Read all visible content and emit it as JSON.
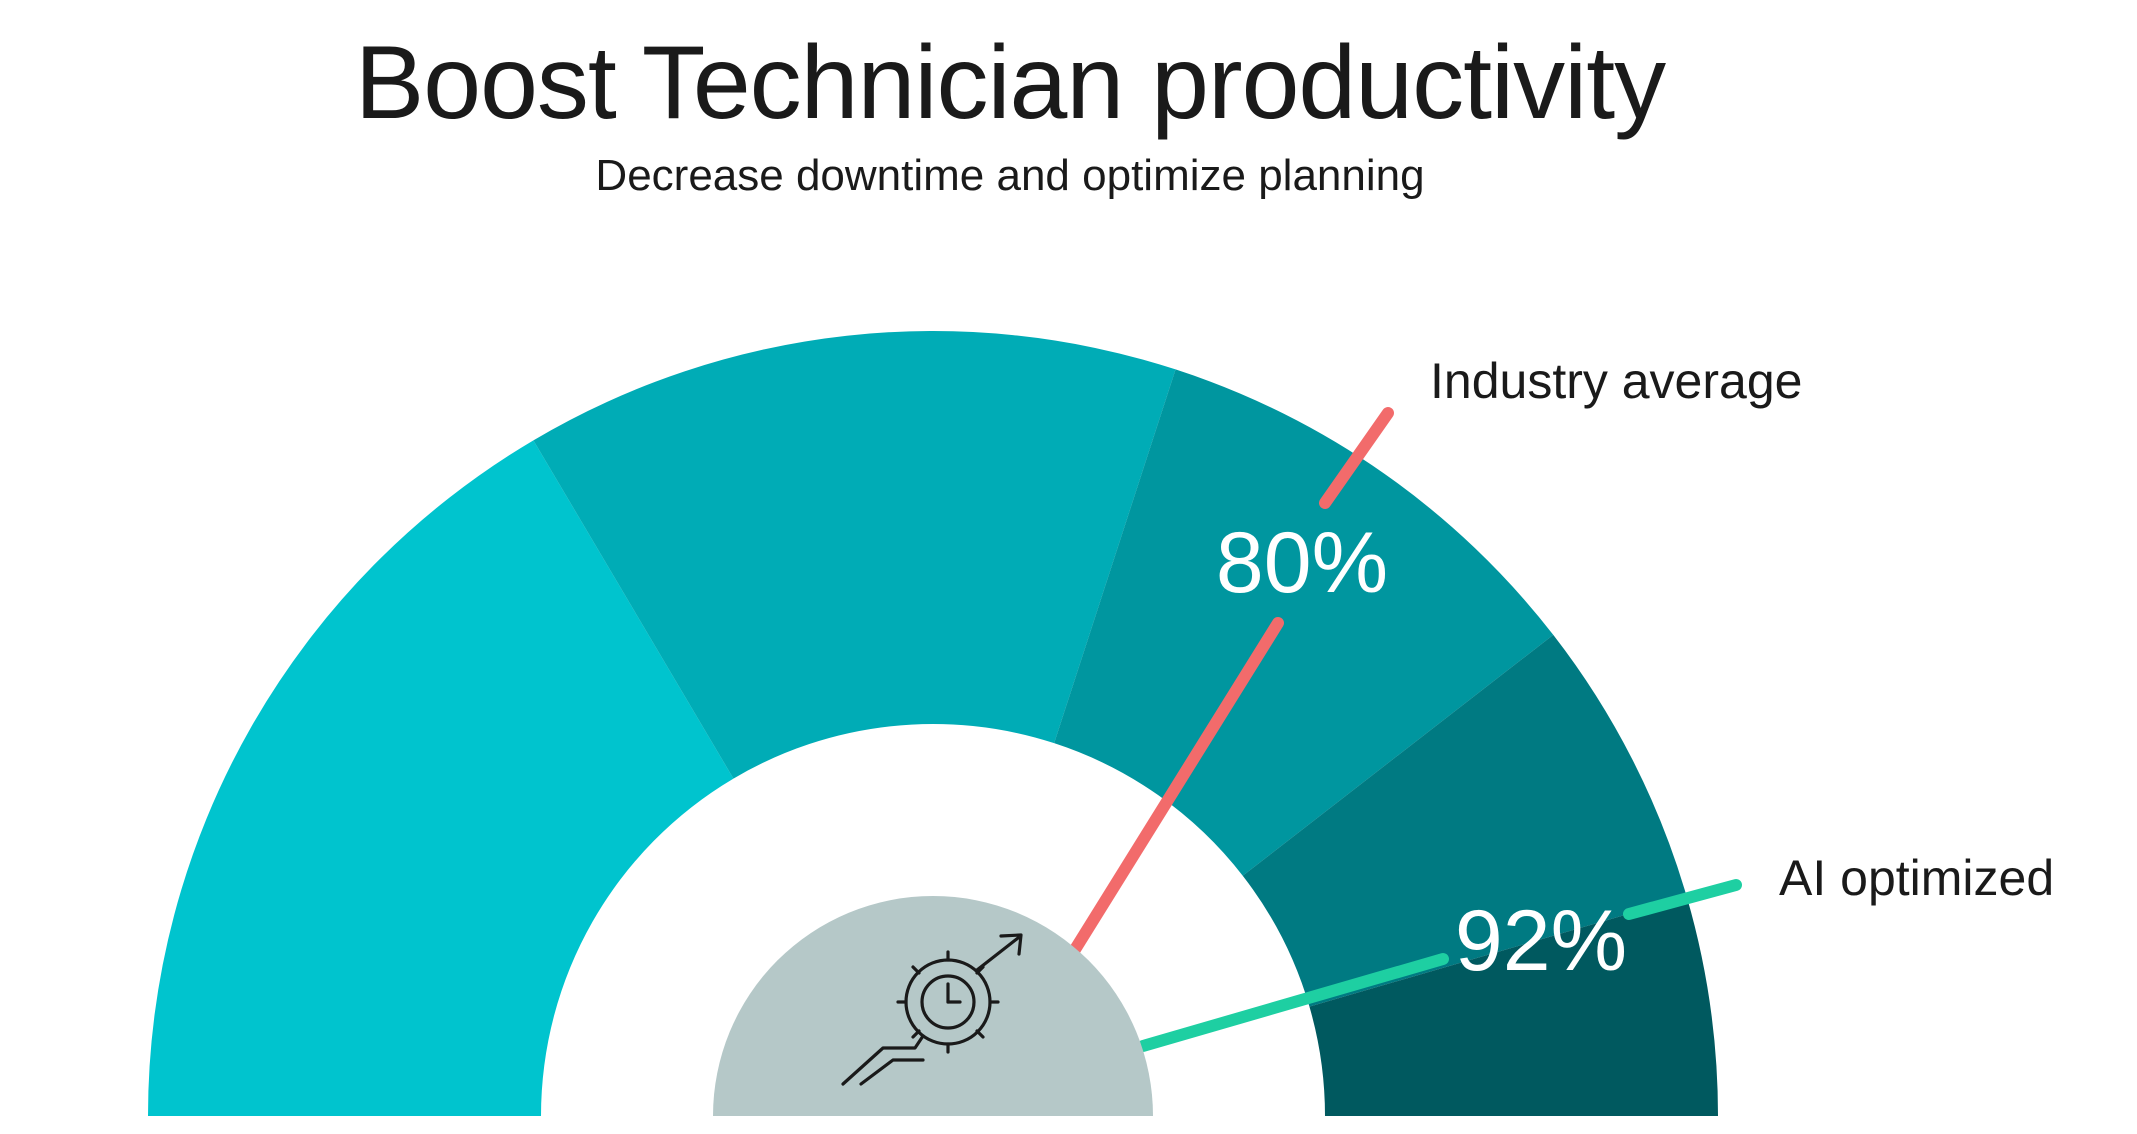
{
  "title": "Boost Technician productivity",
  "subtitle": "Decrease downtime and optimize planning",
  "chart_data": {
    "type": "gauge",
    "title": "Boost Technician productivity",
    "subtitle": "Decrease downtime and optimize planning",
    "range": [
      0,
      100
    ],
    "bands": [
      {
        "from": 0,
        "to": 33,
        "color": "#00C4CE"
      },
      {
        "from": 33,
        "to": 60,
        "color": "#00ACB6"
      },
      {
        "from": 60,
        "to": 79,
        "color": "#00969F"
      },
      {
        "from": 79,
        "to": 91,
        "color": "#007A82"
      },
      {
        "from": 91,
        "to": 100,
        "color": "#00595F"
      }
    ],
    "markers": [
      {
        "label": "Industry average",
        "value": 80,
        "value_label": "80%",
        "color": "#F26B6B"
      },
      {
        "label": "AI optimized",
        "value": 92,
        "value_label": "92%",
        "color": "#1ECFA2"
      }
    ],
    "hub_color": "#B5C8C8",
    "hub_icon": "gear-stopwatch-growth-icon"
  }
}
